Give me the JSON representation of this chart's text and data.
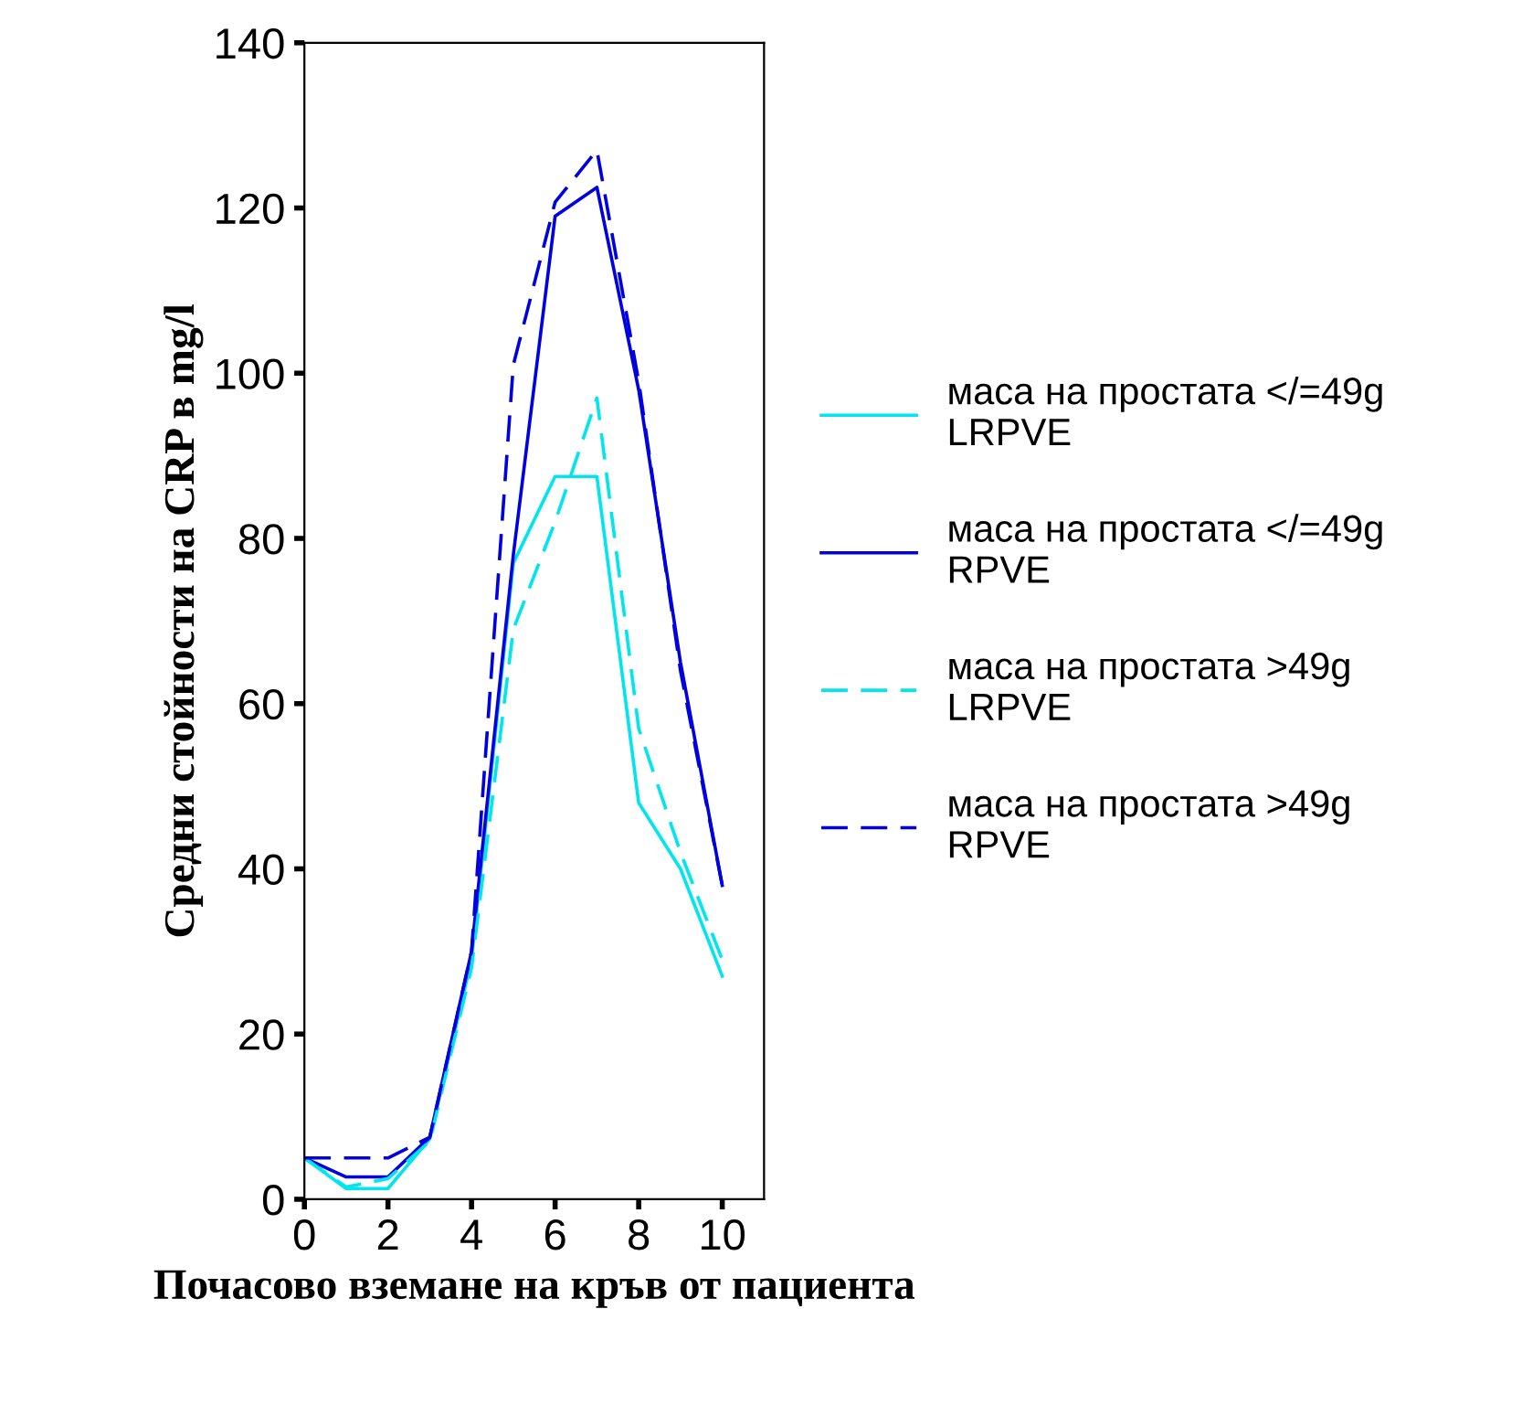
{
  "chart_data": {
    "type": "line",
    "xlabel": "Почасово вземане на кръв от пациента",
    "ylabel": "Средни стойности на CRP в mg/l",
    "x": [
      0,
      1,
      2,
      3,
      4,
      5,
      6,
      7,
      8,
      9,
      10
    ],
    "series": [
      {
        "name": "маса на простата </=49g\nLRPVE",
        "color": "#00e5ee",
        "line_style": "solid",
        "values": [
          5,
          1.3,
          1.3,
          7.3,
          29,
          77,
          87.5,
          87.5,
          48,
          40,
          27
        ]
      },
      {
        "name": "маса на простата </=49g\nRPVE",
        "color": "#0000e0",
        "line_style": "solid",
        "values": [
          5,
          2.7,
          2.7,
          7.5,
          30,
          78,
          119,
          122.5,
          98,
          65,
          38
        ]
      },
      {
        "name": "маса на простата >49g\nLRPVE",
        "color": "#00e5ee",
        "line_style": "dashed",
        "values": [
          5,
          1.5,
          2.5,
          7,
          28,
          69,
          82,
          97,
          57,
          42,
          29
        ]
      },
      {
        "name": "маса на простата >49g\nRPVE",
        "color": "#0000e0",
        "line_style": "dashed",
        "values": [
          5,
          5,
          5,
          7.5,
          30,
          101,
          120.7,
          127,
          99,
          64,
          38
        ]
      }
    ],
    "xlim": [
      0,
      11
    ],
    "xticks": [
      0,
      2,
      4,
      6,
      8,
      10
    ],
    "ylim": [
      0,
      140
    ],
    "yticks": [
      0,
      20,
      40,
      60,
      80,
      100,
      120,
      140
    ],
    "grid": false,
    "legend": "right",
    "marker": "none"
  }
}
